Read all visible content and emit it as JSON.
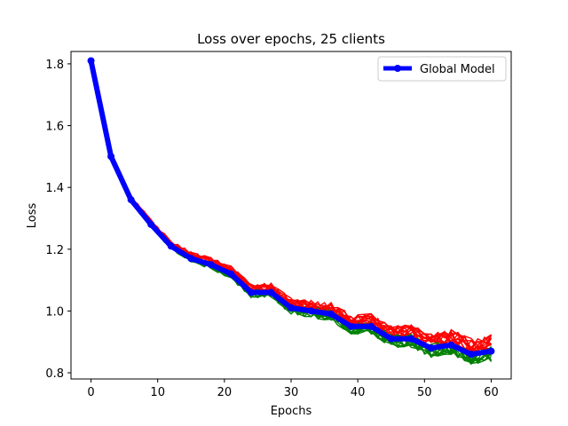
{
  "chart_data": {
    "type": "line",
    "title": "Loss over epochs, 25 clients",
    "xlabel": "Epochs",
    "ylabel": "Loss",
    "xlim": [
      -3,
      63
    ],
    "ylim": [
      0.78,
      1.84
    ],
    "xticks": [
      0,
      10,
      20,
      30,
      40,
      50,
      60
    ],
    "yticks": [
      0.8,
      1.0,
      1.2,
      1.4,
      1.6,
      1.8
    ],
    "xtick_labels": [
      "0",
      "10",
      "20",
      "30",
      "40",
      "50",
      "60"
    ],
    "ytick_labels": [
      "0.8",
      "1.0",
      "1.2",
      "1.4",
      "1.6",
      "1.8"
    ],
    "grid": false,
    "legend": {
      "placement": "top-right",
      "entries": [
        "Global Model"
      ]
    },
    "client_series_count": 25,
    "client_colors": [
      "#ff0000",
      "#008000"
    ],
    "global_color": "#0000ff",
    "series": [
      {
        "name": "Global Model",
        "x": [
          0,
          3,
          6,
          9,
          12,
          15,
          18,
          21,
          24,
          27,
          30,
          33,
          36,
          39,
          42,
          45,
          48,
          51,
          54,
          57,
          60
        ],
        "values": [
          1.81,
          1.5,
          1.36,
          1.28,
          1.21,
          1.17,
          1.15,
          1.12,
          1.06,
          1.06,
          1.01,
          1.0,
          0.99,
          0.95,
          0.95,
          0.91,
          0.91,
          0.88,
          0.89,
          0.86,
          0.87
        ]
      }
    ]
  }
}
